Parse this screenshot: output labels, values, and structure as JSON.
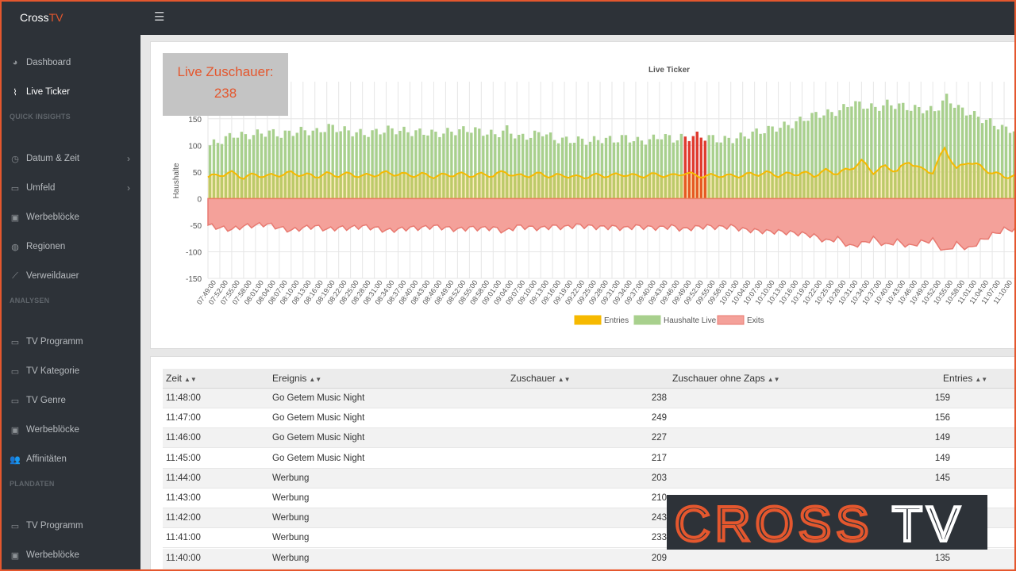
{
  "brand": {
    "name_a": "Cross",
    "name_b": "TV"
  },
  "sidebar": {
    "items": [
      {
        "id": "dashboard",
        "label": "Dashboard",
        "icon": "dashboard-icon",
        "glyph": "◕"
      },
      {
        "id": "live-ticker",
        "label": "Live Ticker",
        "icon": "pulse-icon",
        "glyph": "⌇",
        "active": true
      },
      {
        "id": "datum-zeit",
        "label": "Datum & Zeit",
        "icon": "clock-icon",
        "glyph": "◷",
        "chevron": true
      },
      {
        "id": "umfeld",
        "label": "Umfeld",
        "icon": "monitor-icon",
        "glyph": "▭",
        "chevron": true
      },
      {
        "id": "werbebloecke-1",
        "label": "Werbeblöcke",
        "icon": "image-icon",
        "glyph": "▣"
      },
      {
        "id": "regionen",
        "label": "Regionen",
        "icon": "globe-icon",
        "glyph": "◍"
      },
      {
        "id": "verweildauer",
        "label": "Verweildauer",
        "icon": "line-chart-icon",
        "glyph": "⟋"
      },
      {
        "id": "tv-programm-1",
        "label": "TV Programm",
        "icon": "monitor-icon",
        "glyph": "▭"
      },
      {
        "id": "tv-kategorie",
        "label": "TV Kategorie",
        "icon": "monitor-icon",
        "glyph": "▭"
      },
      {
        "id": "tv-genre",
        "label": "TV Genre",
        "icon": "monitor-icon",
        "glyph": "▭"
      },
      {
        "id": "werbebloecke-2",
        "label": "Werbeblöcke",
        "icon": "image-icon",
        "glyph": "▣"
      },
      {
        "id": "affinitaeten",
        "label": "Affinitäten",
        "icon": "users-icon",
        "glyph": "👥"
      },
      {
        "id": "tv-programm-2",
        "label": "TV Programm",
        "icon": "monitor-icon",
        "glyph": "▭"
      },
      {
        "id": "werbebloecke-3",
        "label": "Werbeblöcke",
        "icon": "image-icon",
        "glyph": "▣"
      }
    ],
    "headings": [
      "QUICK INSIGHTS",
      "ANALYSEN",
      "PLANDATEN"
    ]
  },
  "live_box": {
    "label": "Live Zuschauer:",
    "value": "238"
  },
  "chart_data": {
    "type": "bar",
    "title": "Live Ticker",
    "ylabel": "Haushalte",
    "ylim": [
      -150,
      175
    ],
    "yticks": [
      150,
      100,
      50,
      0,
      -50,
      -100,
      -150
    ],
    "grid": true,
    "legend_position": "bottom",
    "x": [
      "07:49:00",
      "07:52:00",
      "07:55:00",
      "07:58:00",
      "08:01:00",
      "08:04:00",
      "08:07:00",
      "08:10:00",
      "08:13:00",
      "08:16:00",
      "08:19:00",
      "08:22:00",
      "08:25:00",
      "08:28:00",
      "08:31:00",
      "08:34:00",
      "08:37:00",
      "08:40:00",
      "08:43:00",
      "08:46:00",
      "08:49:00",
      "08:52:00",
      "08:55:00",
      "08:58:00",
      "09:01:00",
      "09:04:00",
      "09:07:00",
      "09:10:00",
      "09:13:00",
      "09:16:00",
      "09:19:00",
      "09:22:00",
      "09:25:00",
      "09:28:00",
      "09:31:00",
      "09:34:00",
      "09:37:00",
      "09:40:00",
      "09:43:00",
      "09:46:00",
      "09:49:00",
      "09:52:00",
      "09:55:00",
      "09:58:00",
      "10:01:00",
      "10:04:00",
      "10:07:00",
      "10:10:00",
      "10:13:00",
      "10:16:00",
      "10:19:00",
      "10:22:00",
      "10:25:00",
      "10:28:00",
      "10:31:00",
      "10:34:00",
      "10:37:00",
      "10:40:00",
      "10:43:00",
      "10:46:00",
      "10:49:00",
      "10:52:00",
      "10:55:00",
      "10:58:00",
      "11:01:00",
      "11:04:00",
      "11:07:00",
      "11:10:00"
    ],
    "series": [
      {
        "name": "Entries",
        "color": "#f6b900",
        "type": "line",
        "values": [
          40,
          45,
          48,
          40,
          45,
          42,
          45,
          48,
          45,
          42,
          46,
          44,
          46,
          42,
          45,
          48,
          46,
          44,
          45,
          42,
          44,
          46,
          44,
          45,
          44,
          50,
          42,
          44,
          46,
          42,
          44,
          40,
          42,
          44,
          43,
          46,
          42,
          44,
          45,
          42,
          48,
          44,
          42,
          44,
          42,
          44,
          46,
          48,
          44,
          46,
          48,
          44,
          52,
          48,
          55,
          70,
          50,
          60,
          52,
          70,
          55,
          50,
          95,
          55,
          70,
          60,
          48,
          42
        ]
      },
      {
        "name": "Haushalte Live",
        "color": "#a8d08d",
        "type": "bar",
        "values": [
          100,
          110,
          120,
          118,
          122,
          125,
          120,
          125,
          128,
          125,
          135,
          130,
          125,
          122,
          125,
          130,
          128,
          125,
          125,
          122,
          125,
          128,
          130,
          125,
          120,
          130,
          115,
          118,
          125,
          112,
          110,
          110,
          108,
          112,
          110,
          115,
          108,
          110,
          118,
          112,
          115,
          118,
          115,
          110,
          112,
          118,
          125,
          130,
          135,
          140,
          150,
          158,
          160,
          165,
          180,
          175,
          170,
          178,
          175,
          170,
          168,
          165,
          190,
          170,
          160,
          150,
          140,
          130
        ]
      },
      {
        "name": "Exits",
        "color": "#f4a19a",
        "type": "area",
        "values": [
          -50,
          -55,
          -58,
          -52,
          -50,
          -48,
          -55,
          -60,
          -55,
          -52,
          -58,
          -55,
          -55,
          -52,
          -55,
          -60,
          -58,
          -55,
          -55,
          -52,
          -55,
          -58,
          -55,
          -56,
          -55,
          -62,
          -52,
          -54,
          -56,
          -52,
          -54,
          -50,
          -52,
          -54,
          -53,
          -56,
          -52,
          -54,
          -55,
          -52,
          -58,
          -54,
          -52,
          -54,
          -52,
          -58,
          -60,
          -62,
          -62,
          -64,
          -66,
          -70,
          -80,
          -75,
          -90,
          -85,
          -75,
          -88,
          -80,
          -90,
          -82,
          -78,
          -100,
          -85,
          -95,
          -80,
          -68,
          -58
        ]
      }
    ],
    "highlight_range": [
      "09:49:00",
      "09:52:00"
    ],
    "highlight_color": "#e03a2e"
  },
  "table": {
    "columns": [
      "Zeit",
      "Ereignis",
      "Zuschauer",
      "Zuschauer ohne Zaps",
      "Entries"
    ],
    "rows": [
      [
        "11:48:00",
        "Go Getem Music Night",
        "238",
        "159"
      ],
      [
        "11:47:00",
        "Go Getem Music Night",
        "249",
        "156"
      ],
      [
        "11:46:00",
        "Go Getem Music Night",
        "227",
        "149"
      ],
      [
        "11:45:00",
        "Go Getem Music Night",
        "217",
        "149"
      ],
      [
        "11:44:00",
        "Werbung",
        "203",
        "145"
      ],
      [
        "11:43:00",
        "Werbung",
        "210",
        ""
      ],
      [
        "11:42:00",
        "Werbung",
        "243",
        ""
      ],
      [
        "11:41:00",
        "Werbung",
        "233",
        ""
      ],
      [
        "11:40:00",
        "Werbung",
        "209",
        "135"
      ]
    ]
  },
  "logo": {
    "text": "CROSSTV",
    "color_a": "#e4572e",
    "color_b": "#ffffff"
  }
}
